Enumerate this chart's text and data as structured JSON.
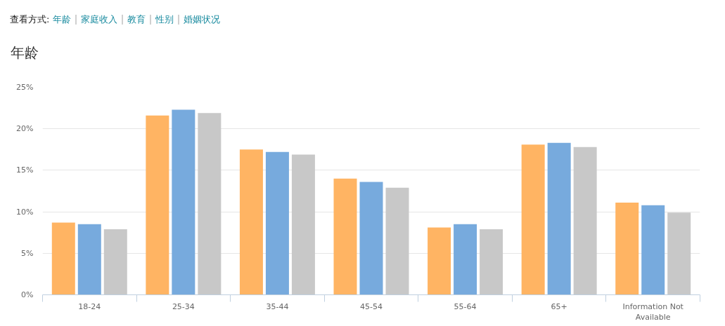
{
  "chart_data": {
    "type": "bar",
    "title": "年龄",
    "annotations": [
      "查看方式:",
      "年龄",
      "家庭收入",
      "教育",
      "性别",
      "婚姻状况"
    ],
    "categories": [
      "18-24",
      "25-34",
      "35-44",
      "45-54",
      "55-64",
      "65+",
      "Information Not Available"
    ],
    "series": [
      {
        "color": "#ffb463",
        "values": [
          8.7,
          21.6,
          17.5,
          14.0,
          8.1,
          18.1,
          11.1
        ]
      },
      {
        "color": "#77aadd",
        "values": [
          8.5,
          22.3,
          17.2,
          13.6,
          8.5,
          18.3,
          10.8
        ]
      },
      {
        "color": "#c8c8c8",
        "values": [
          7.9,
          21.9,
          16.9,
          12.9,
          7.9,
          17.8,
          9.9
        ]
      }
    ],
    "ylim": [
      0,
      25
    ],
    "yticks": [
      {
        "value": 0,
        "label": "0%"
      },
      {
        "value": 5,
        "label": "5%"
      },
      {
        "value": 10,
        "label": "10%"
      },
      {
        "value": 15,
        "label": "15%"
      },
      {
        "value": 20,
        "label": "20%"
      },
      {
        "value": 25,
        "label": "25%"
      }
    ],
    "grid": "y"
  }
}
